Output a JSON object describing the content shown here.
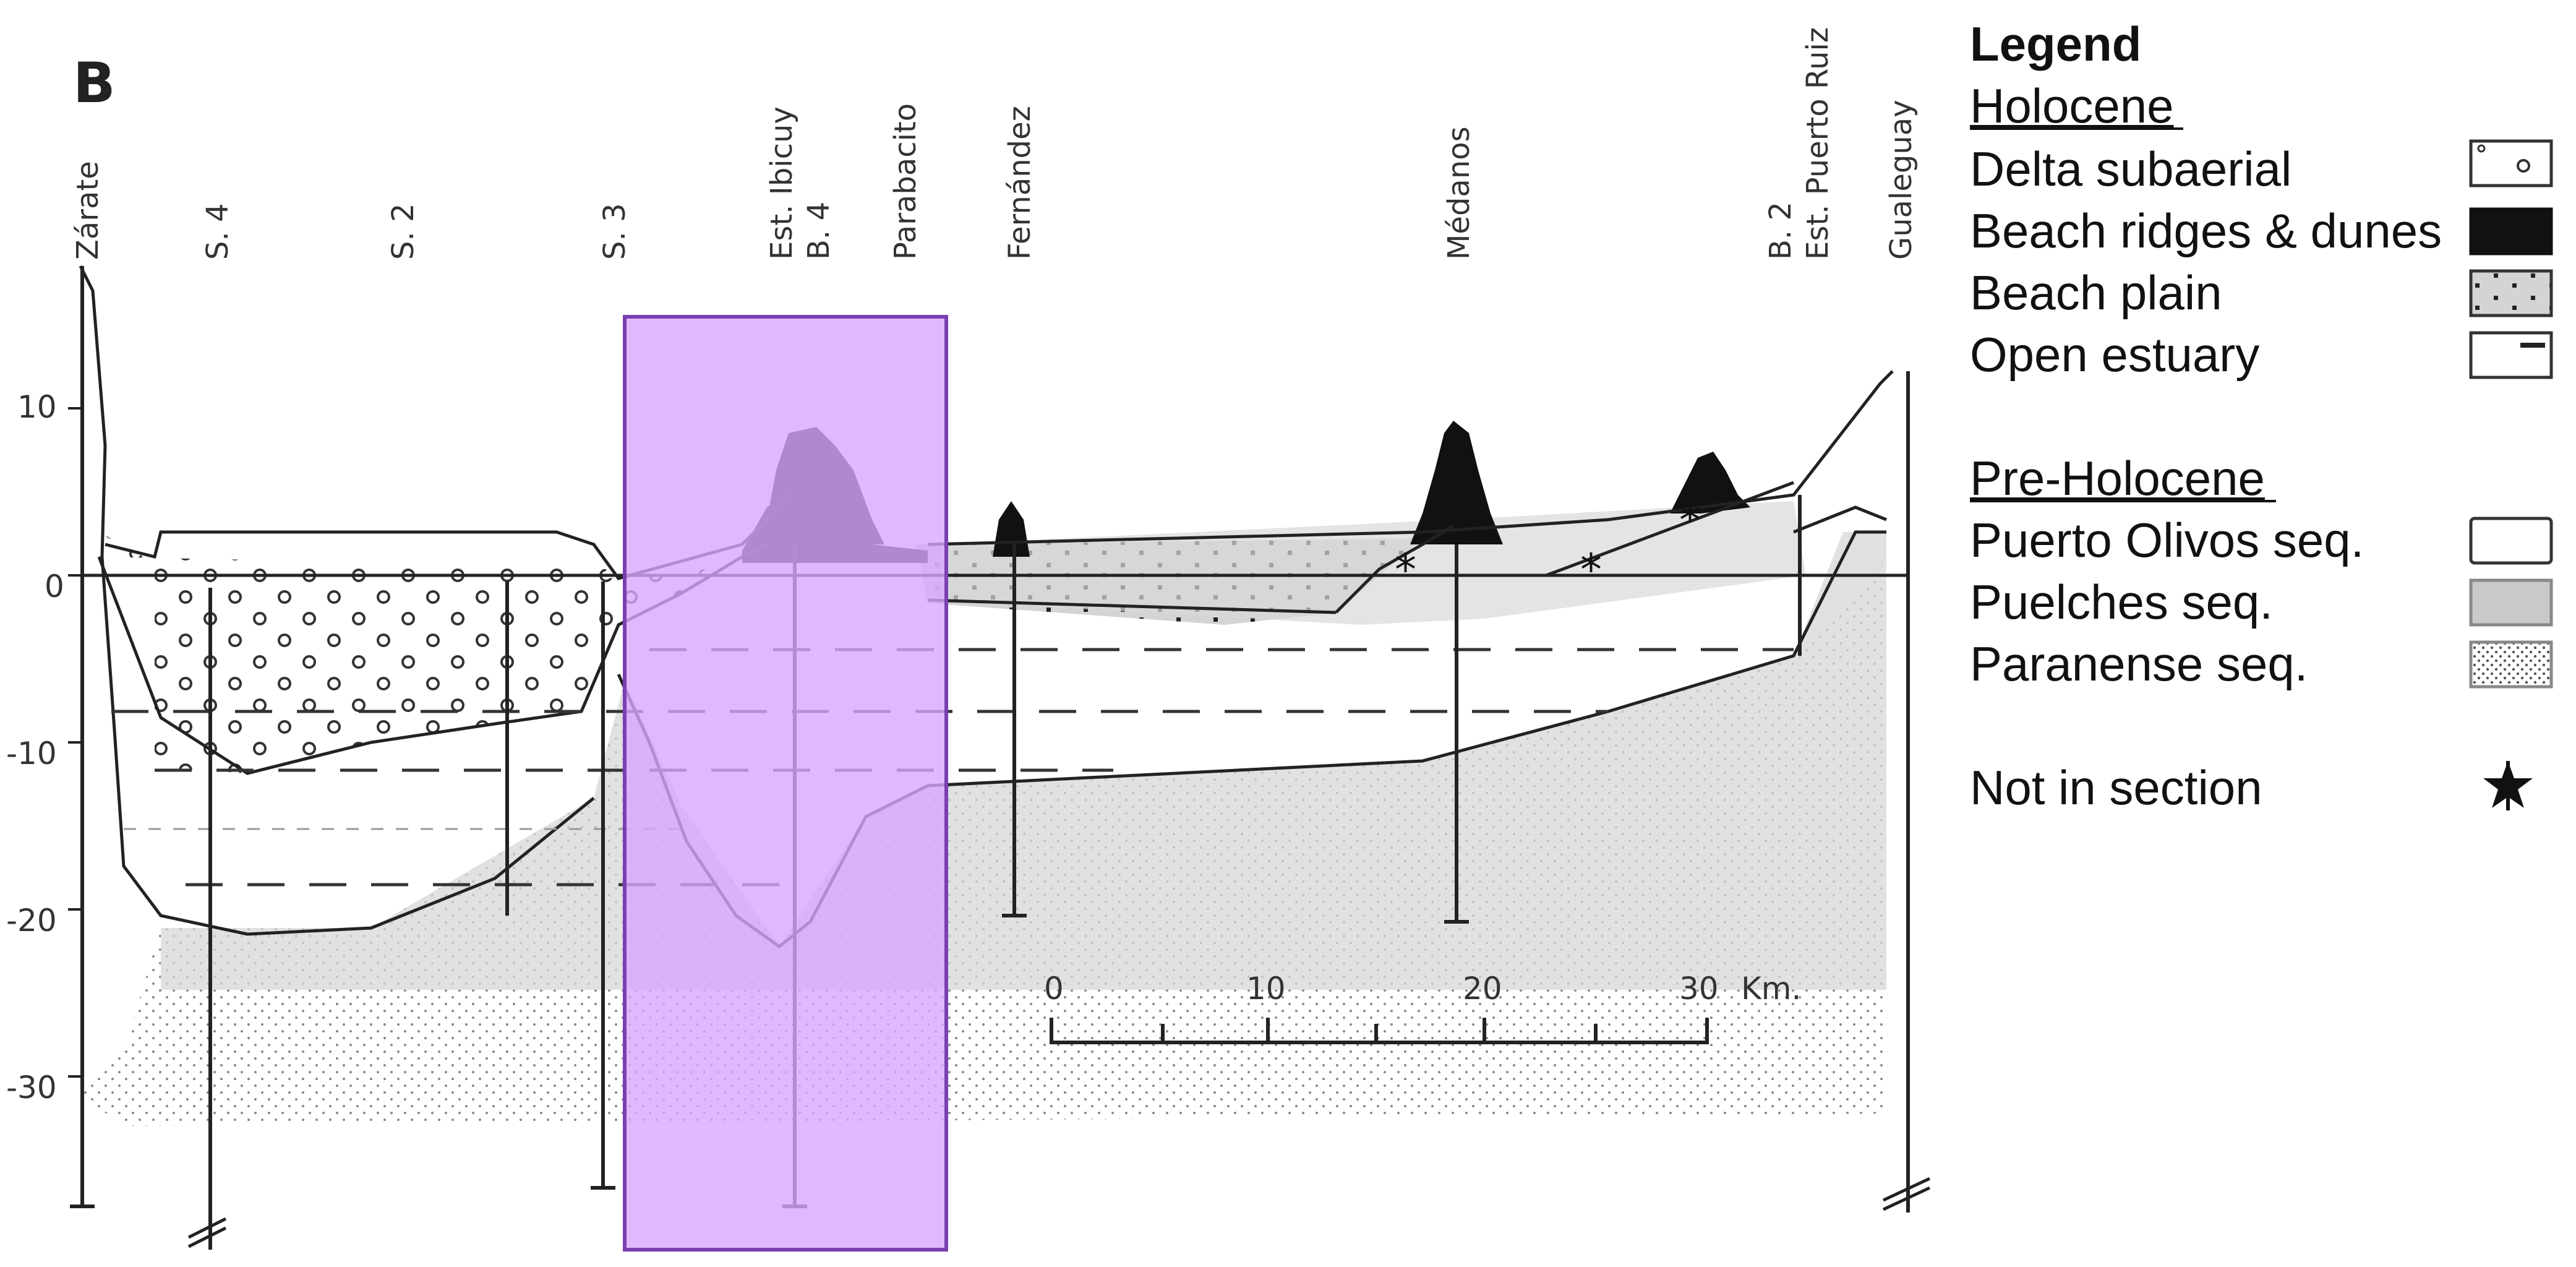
{
  "panel_label": "B",
  "y_axis": {
    "ticks": [
      "10",
      "0",
      "-10",
      "-20",
      "-30"
    ]
  },
  "wells": [
    "Zárate",
    "S. 4",
    "S. 2",
    "S. 3",
    "Est. Ibicuy",
    "B. 4",
    "Parabacito",
    "Fernández",
    "Médanos",
    "B. 2",
    "Est. Puerto Ruiz",
    "Gualeguay"
  ],
  "scale_bar": {
    "ticks": [
      "0",
      "10",
      "20",
      "30"
    ],
    "unit": "Km."
  },
  "legend": {
    "title": "Legend",
    "holocene_header": "Holocene",
    "holocene_items": [
      "Delta subaerial",
      "Beach ridges & dunes",
      "Beach plain",
      "Open estuary"
    ],
    "preholocene_header": "Pre-Holocene",
    "preholocene_items": [
      "Puerto Olivos seq.",
      "Puelches seq.",
      "Paranense seq."
    ],
    "not_in_section": "Not in section"
  },
  "colors": {
    "highlight_fill": "#d9a6ff",
    "highlight_stroke": "#7a3fb0",
    "line": "#222222",
    "puelches": "#c9c9c9"
  }
}
